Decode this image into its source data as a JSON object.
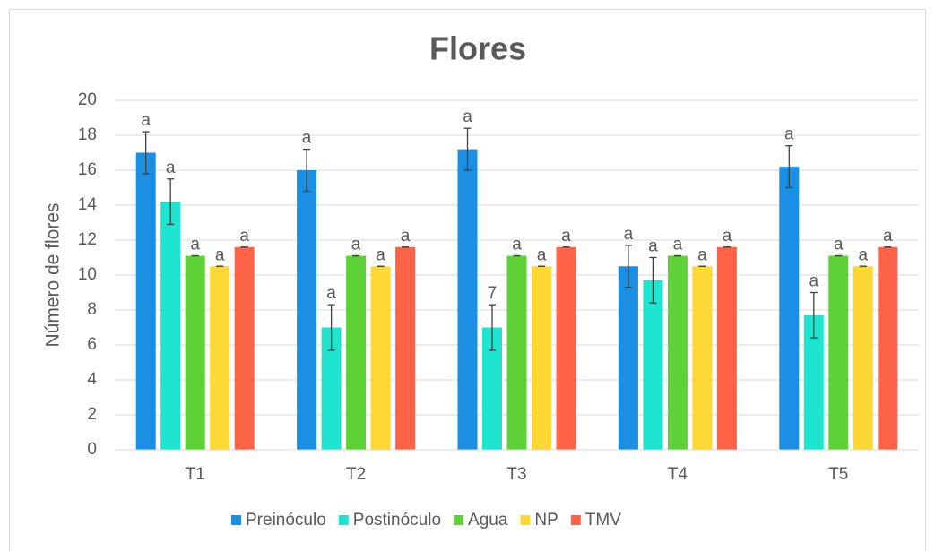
{
  "chart_data": {
    "type": "bar",
    "title": "Flores",
    "y_label": "Número de flores",
    "categories": [
      "T1",
      "T2",
      "T3",
      "T4",
      "T5"
    ],
    "series": [
      {
        "name": "Preinóculo",
        "color": "#1a8fe3",
        "values": [
          17,
          16,
          17.2,
          10.5,
          16.2
        ],
        "errors": [
          1.2,
          1.2,
          1.2,
          1.2,
          1.2
        ],
        "labels": [
          "a",
          "a",
          "a",
          "a",
          "a"
        ]
      },
      {
        "name": "Postinóculo",
        "color": "#1de5cf",
        "values": [
          14.2,
          7,
          7,
          9.7,
          7.7
        ],
        "errors": [
          1.3,
          1.3,
          1.3,
          1.3,
          1.3
        ],
        "labels": [
          "a",
          "a",
          "7",
          "a",
          "a"
        ]
      },
      {
        "name": "Agua",
        "color": "#5ed137",
        "values": [
          11.1,
          11.1,
          11.1,
          11.1,
          11.1
        ],
        "errors": [
          0,
          0,
          0,
          0,
          0
        ],
        "labels": [
          "a",
          "a",
          "a",
          "a",
          "a"
        ]
      },
      {
        "name": "NP",
        "color": "#fdd835",
        "values": [
          10.5,
          10.5,
          10.5,
          10.5,
          10.5
        ],
        "errors": [
          0,
          0,
          0,
          0,
          0
        ],
        "labels": [
          "a",
          "a",
          "a",
          "a",
          "a"
        ]
      },
      {
        "name": "TMV",
        "color": "#ff6347",
        "values": [
          11.6,
          11.6,
          11.6,
          11.6,
          11.6
        ],
        "errors": [
          0,
          0,
          0,
          0,
          0
        ],
        "labels": [
          "a",
          "a",
          "a",
          "a",
          "a"
        ]
      }
    ],
    "ylim": [
      0,
      20
    ],
    "yticks": [
      0,
      2,
      4,
      6,
      8,
      10,
      12,
      14,
      16,
      18,
      20
    ],
    "grid": true,
    "legend": "bottom"
  }
}
